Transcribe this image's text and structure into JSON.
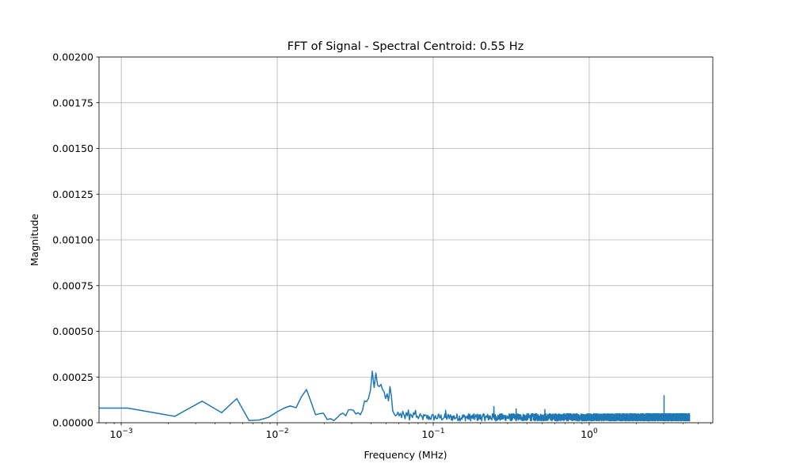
{
  "chart_data": {
    "type": "line",
    "title": "FFT of Signal - Spectral Centroid: 0.55 Hz",
    "xlabel": "Frequency (MHz)",
    "ylabel": "Magnitude",
    "xscale": "log",
    "xlim": [
      0.00072,
      6.2
    ],
    "ylim": [
      0,
      0.002
    ],
    "grid": true,
    "line_color": "#1f77b4",
    "x_ticks": [
      {
        "value": 0.001,
        "base": "10",
        "exp": "−3"
      },
      {
        "value": 0.01,
        "base": "10",
        "exp": "−2"
      },
      {
        "value": 0.1,
        "base": "10",
        "exp": "−1"
      },
      {
        "value": 1,
        "base": "10",
        "exp": "0"
      }
    ],
    "y_ticks": [
      "0.00000",
      "0.00025",
      "0.00050",
      "0.00075",
      "0.00100",
      "0.00125",
      "0.00150",
      "0.00175",
      "0.00200"
    ],
    "y_tick_values": [
      0,
      0.00025,
      0.0005,
      0.00075,
      0.001,
      0.00125,
      0.0015,
      0.00175,
      0.002
    ],
    "series": [
      {
        "x": [
          0.00072,
          0.0011,
          0.0022,
          0.0033,
          0.0044,
          0.0055,
          0.0066,
          0.0077,
          0.0088,
          0.0099,
          0.011,
          0.0121,
          0.0132,
          0.0143,
          0.0154,
          0.0165,
          0.0176,
          0.0187,
          0.0198,
          0.0209,
          0.022,
          0.0231,
          0.0242,
          0.0253,
          0.0264,
          0.0275,
          0.0286,
          0.0297,
          0.0308,
          0.0319,
          0.033,
          0.0341,
          0.0352,
          0.0363,
          0.0374,
          0.0385,
          0.0396,
          0.0407,
          0.0418,
          0.0429,
          0.044,
          0.0451,
          0.0462,
          0.0473,
          0.0484,
          0.0495,
          0.0506,
          0.0517,
          0.0528,
          0.0539,
          0.055,
          0.0561,
          0.0572,
          0.0583,
          0.0594,
          0.0605,
          0.0616,
          0.0627,
          0.0638,
          0.0649,
          0.066,
          0.0671,
          0.0682,
          0.0693,
          0.0704,
          0.0715,
          0.0726,
          0.0737,
          0.0748,
          0.0759,
          0.077,
          0.0781
        ],
        "y": [
          8e-05,
          8e-05,
          3.5e-05,
          0.000118,
          5.5e-05,
          0.000132,
          1.2e-05,
          1.5e-05,
          3e-05,
          5.8e-05,
          7.9e-05,
          9.2e-05,
          8.2e-05,
          0.000142,
          0.000182,
          0.000112,
          4.4e-05,
          5e-05,
          5.2e-05,
          1.8e-05,
          2.2e-05,
          1.2e-05,
          2.8e-05,
          4.5e-05,
          5.2e-05,
          3.8e-05,
          7e-05,
          7.2e-05,
          6.8e-05,
          4.8e-05,
          5.5e-05,
          4.4e-05,
          6.8e-05,
          0.00012,
          0.000115,
          0.000135,
          0.000178,
          0.000282,
          0.000192,
          0.000272,
          0.000205,
          0.000198,
          0.00021,
          0.000182,
          0.00017,
          0.000132,
          0.000158,
          0.00012,
          0.000198,
          0.000148,
          6.5e-05,
          5e-05,
          3.8e-05,
          4.2e-05,
          5.8e-05,
          3.8e-05,
          5.2e-05,
          2.8e-05,
          6.2e-05,
          4.5e-05,
          2.2e-05,
          5.5e-05,
          3.8e-05,
          7e-05,
          1.5e-05,
          4.8e-05,
          4e-05,
          2.8e-05,
          5.5e-05,
          4.5e-05,
          6.8e-05,
          3e-05
        ],
        "noise_band": {
          "x_start": 0.0781,
          "x_end": 4.4,
          "mean": 3e-05,
          "amplitude": 2e-05
        },
        "peaks": [
          {
            "x": 0.12,
            "y": 6.8e-05
          },
          {
            "x": 0.245,
            "y": 8.8e-05
          },
          {
            "x": 0.34,
            "y": 7.5e-05
          },
          {
            "x": 0.52,
            "y": 7.2e-05
          },
          {
            "x": 3.02,
            "y": 0.000148
          }
        ]
      }
    ]
  }
}
